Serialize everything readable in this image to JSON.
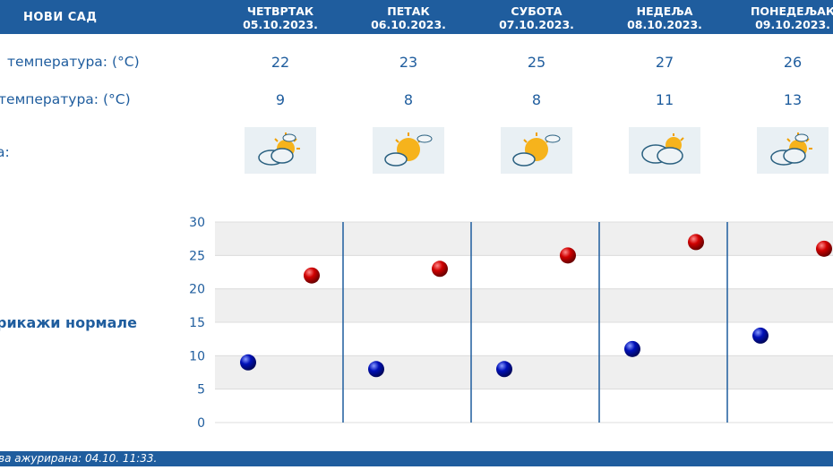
{
  "header": {
    "city": "НОВИ САД",
    "days": [
      {
        "name": "ЧЕТВРТАК",
        "date": "05.10.2023."
      },
      {
        "name": "ПЕТАК",
        "date": "06.10.2023."
      },
      {
        "name": "СУБОТА",
        "date": "07.10.2023."
      },
      {
        "name": "НЕДЕЉА",
        "date": "08.10.2023."
      },
      {
        "name": "ПОНЕДЕЉАК",
        "date": "09.10.2023."
      }
    ]
  },
  "rows": {
    "max_label": "температура: (°C)",
    "min_label": "температура: (°C)",
    "icon_label": "а:",
    "max_values": [
      "22",
      "23",
      "25",
      "27",
      "26"
    ],
    "min_values": [
      "9",
      "8",
      "8",
      "11",
      "13"
    ]
  },
  "icons": [
    "sun-cloud-icon",
    "sun-cloud-icon",
    "sun-cloud-icon",
    "cloud-sun-icon",
    "sun-cloud-icon"
  ],
  "normals_label": "рикажи нормале",
  "footer": {
    "text": "ва ажурирана:  04.10. 11:33."
  },
  "colors": {
    "brand": "#1f5d9e",
    "max_point": "#cc0000",
    "min_point": "#0010b0"
  },
  "chart_data": {
    "type": "scatter",
    "categories": [
      "05.10.2023.",
      "06.10.2023.",
      "07.10.2023.",
      "08.10.2023.",
      "09.10.2023."
    ],
    "series": [
      {
        "values": [
          22,
          23,
          25,
          27,
          26
        ]
      },
      {
        "values": [
          9,
          8,
          8,
          11,
          13
        ]
      }
    ],
    "ylim": [
      0,
      30
    ],
    "yticks": [
      "0",
      "5",
      "10",
      "15",
      "20",
      "25",
      "30"
    ],
    "grid": true
  }
}
